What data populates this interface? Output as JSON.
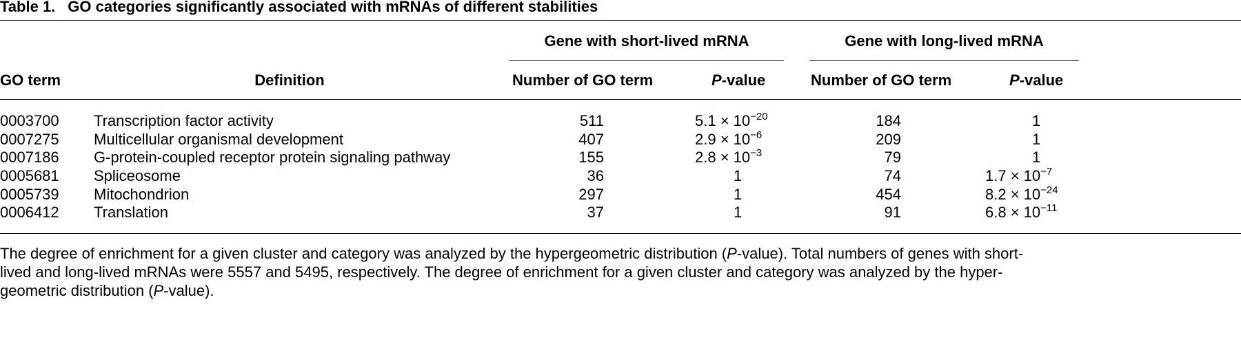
{
  "table": {
    "caption_label": "Table 1.",
    "caption_text": "GO categories significantly associated with mRNAs of different stabilities",
    "headers": {
      "go_term": "GO term",
      "definition": "Definition",
      "group_short": "Gene with short-lived mRNA",
      "group_long": "Gene with long-lived mRNA",
      "number_short": "Number of GO term",
      "number_long": "Number of GO term",
      "pvalue_italic": "P",
      "pvalue_suffix": "-value"
    },
    "rows": [
      {
        "go_term": "0003700",
        "definition": "Transcription factor activity",
        "short_number": "511",
        "short_p_mantissa": "5.1 × 10",
        "short_p_exp": "−20",
        "long_number": "184",
        "long_p_mantissa": "1",
        "long_p_exp": ""
      },
      {
        "go_term": "0007275",
        "definition": "Multicellular organismal development",
        "short_number": "407",
        "short_p_mantissa": "2.9 × 10",
        "short_p_exp": "−6",
        "long_number": "209",
        "long_p_mantissa": "1",
        "long_p_exp": ""
      },
      {
        "go_term": "0007186",
        "definition": "G-protein-coupled receptor protein signaling pathway",
        "short_number": "155",
        "short_p_mantissa": "2.8 × 10",
        "short_p_exp": "−3",
        "long_number": "79",
        "long_p_mantissa": "1",
        "long_p_exp": ""
      },
      {
        "go_term": "0005681",
        "definition": "Spliceosome",
        "short_number": "36",
        "short_p_mantissa": "1",
        "short_p_exp": "",
        "long_number": "74",
        "long_p_mantissa": "1.7 × 10",
        "long_p_exp": "−7"
      },
      {
        "go_term": "0005739",
        "definition": "Mitochondrion",
        "short_number": "297",
        "short_p_mantissa": "1",
        "short_p_exp": "",
        "long_number": "454",
        "long_p_mantissa": "8.2 × 10",
        "long_p_exp": "−24"
      },
      {
        "go_term": "0006412",
        "definition": "Translation",
        "short_number": "37",
        "short_p_mantissa": "1",
        "short_p_exp": "",
        "long_number": "91",
        "long_p_mantissa": "6.8 × 10",
        "long_p_exp": "−11"
      }
    ]
  },
  "footnote": {
    "line1_pre": "The degree of enrichment for a given cluster and category was analyzed by the hypergeometric distribution (",
    "line1_italic": "P",
    "line1_post": "-value). Total numbers of genes with short-",
    "line2": "lived and long-lived mRNAs were 5557 and 5495, respectively. The degree of enrichment for a given cluster and category was analyzed by the hyper-",
    "line3_pre": "geometric distribution (",
    "line3_italic": "P",
    "line3_post": "-value)."
  }
}
